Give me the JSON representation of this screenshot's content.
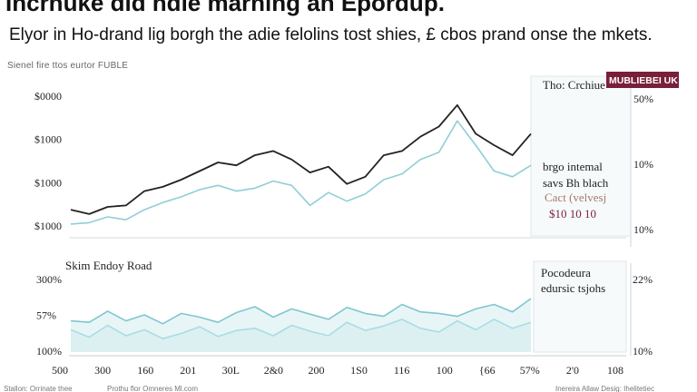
{
  "header": {
    "headline": "Incrnuke did hdie marhing an Epordup.",
    "subhead": "Elyor in Ho-drand lig borgh the adie felolins tost shies, £ cbos prand onse the mkets.",
    "source_label": "Sienel fire ttos eurtor FUBLE"
  },
  "top_panel": {
    "legend_title": "Tho: Crchiue",
    "badge_text": "MUBLIEBEI UK",
    "badge_color": "#7a1f3a",
    "annotation": [
      "brgo intemal",
      "savs Bh blach"
    ],
    "sub_annotation": "Cact (velvesj",
    "value_note": "$10 10 10",
    "right_ticks": [
      "50%",
      "10%",
      "10%"
    ]
  },
  "bottom_panel": {
    "title": "Skim Endoy Road",
    "annotation": [
      "Pocodeura",
      "edursic tsjohs"
    ],
    "right_ticks": [
      "22%",
      "10%"
    ]
  },
  "footer": {
    "left": "Stallon: Orrinate thee",
    "mid": "Prothu flor Omneres Ml.com",
    "right": "Inereira Allaw Desig: Ihelitetiec"
  },
  "chart_data": [
    {
      "type": "line",
      "title": "Tho: Crchiue",
      "ytick_labels": [
        "$0000",
        "$1000",
        "$1000",
        "$1000"
      ],
      "right_tick_labels": [
        "50%",
        "10%",
        "10%"
      ],
      "ylim": [
        0,
        100
      ],
      "x": [
        0,
        4,
        8,
        12,
        16,
        20,
        24,
        28,
        32,
        36,
        40,
        44,
        48,
        52,
        56,
        60,
        64,
        68,
        72,
        76,
        80,
        84,
        88,
        92,
        96,
        100
      ],
      "series": [
        {
          "name": "dark",
          "color": "#222222",
          "values": [
            17,
            14,
            19,
            20,
            30,
            33,
            38,
            44,
            50,
            48,
            55,
            58,
            52,
            43,
            47,
            35,
            40,
            55,
            58,
            68,
            75,
            90,
            70,
            62,
            55,
            70
          ]
        },
        {
          "name": "light",
          "color": "#8ecfd6",
          "values": [
            7,
            8,
            12,
            10,
            17,
            22,
            26,
            31,
            34,
            30,
            32,
            37,
            34,
            20,
            29,
            23,
            28,
            38,
            42,
            52,
            57,
            79,
            62,
            44,
            40,
            48
          ]
        }
      ]
    },
    {
      "type": "area",
      "title": "Skim Endoy Road",
      "ytick_labels": [
        "300%",
        "57%",
        "100%"
      ],
      "right_tick_labels": [
        "22%",
        "10%"
      ],
      "categories": [
        "500",
        "300",
        "160",
        "201",
        "30L",
        "2&0",
        "200",
        "1S0",
        "116",
        "100",
        "{66",
        "57%",
        "2'0",
        "108"
      ],
      "ylim": [
        0,
        100
      ],
      "x": [
        0,
        4,
        8,
        12,
        16,
        20,
        24,
        28,
        32,
        36,
        40,
        44,
        48,
        52,
        56,
        60,
        64,
        68,
        72,
        76,
        80,
        84,
        88,
        92,
        96,
        100
      ],
      "series": [
        {
          "name": "upper",
          "color": "#7fc7cf",
          "values": [
            42,
            40,
            55,
            42,
            50,
            38,
            52,
            47,
            40,
            53,
            61,
            47,
            58,
            51,
            44,
            60,
            52,
            48,
            64,
            54,
            52,
            48,
            58,
            64,
            54,
            72
          ]
        },
        {
          "name": "lower",
          "color": "#a8dde2",
          "values": [
            30,
            20,
            36,
            22,
            30,
            18,
            25,
            34,
            21,
            29,
            32,
            22,
            36,
            28,
            22,
            40,
            29,
            35,
            44,
            32,
            27,
            42,
            30,
            44,
            32,
            40
          ]
        }
      ]
    }
  ]
}
